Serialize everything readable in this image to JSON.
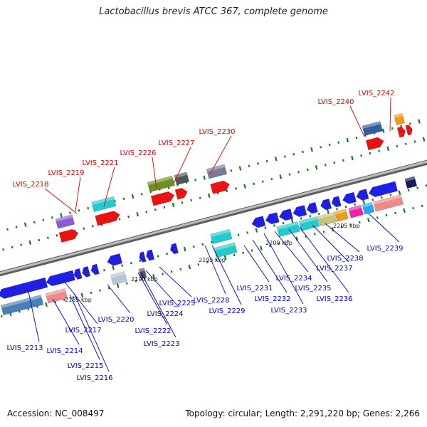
{
  "title": "Lactobacillus brevis ATCC 367, complete genome",
  "footer": {
    "accession": "Accession: NC_008497",
    "summary": "Topology: circular; Length: 2,291,220 bp; Genes: 2,266"
  },
  "colors": {
    "label_top": "#dd0000",
    "label_bottom": "#0000cc",
    "axis": "#888888",
    "tick": "#1a7a1a"
  },
  "ticks": [
    "2185 kbp",
    "2190 kbp",
    "2195 kbp",
    "2200 kbp",
    "2205 kbp"
  ],
  "genes_top": [
    "LVIS_2218",
    "LVIS_2219",
    "LVIS_2221",
    "LVIS_2226",
    "LVIS_2227",
    "LVIS_2230",
    "LVIS_2240",
    "LVIS_2242"
  ],
  "genes_bottom": [
    "LVIS_2213",
    "LVIS_2214",
    "LVIS_2215",
    "LVIS_2216",
    "LVIS_2217",
    "LVIS_2220",
    "LVIS_2222",
    "LVIS_2223",
    "LVIS_2224",
    "LVIS_2225",
    "LVIS_2228",
    "LVIS_2229",
    "LVIS_2231",
    "LVIS_2232",
    "LVIS_2233",
    "LVIS_2234",
    "LVIS_2235",
    "LVIS_2236",
    "LVIS_2237",
    "LVIS_2238",
    "LVIS_2239"
  ]
}
